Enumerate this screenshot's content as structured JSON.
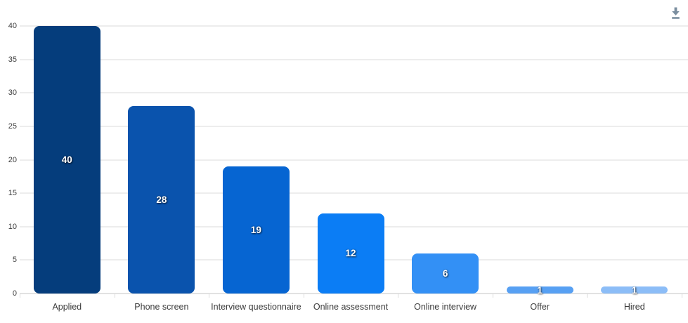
{
  "toolbar": {
    "download_icon_color": "#7b8fa0"
  },
  "chart_data": {
    "type": "bar",
    "title": "",
    "categories": [
      "Applied",
      "Phone screen",
      "Interview questionnaire",
      "Online assessment",
      "Online interview",
      "Offer",
      "Hired"
    ],
    "values": [
      40,
      28,
      19,
      12,
      6,
      1,
      1
    ],
    "bar_colors": [
      "#053d7c",
      "#0a53ad",
      "#0665d2",
      "#0b7df5",
      "#3390f5",
      "#57a0f3",
      "#8cbdf7"
    ],
    "value_label_color": "#ffffff",
    "xlabel": "",
    "ylabel": "",
    "y_ticks": [
      0,
      5,
      10,
      15,
      20,
      25,
      30,
      35,
      40
    ],
    "ylim": [
      0,
      40
    ],
    "grid": true,
    "gridline_color": "#ededed",
    "axis_text_color": "#3c3c3c",
    "legend": "none"
  }
}
